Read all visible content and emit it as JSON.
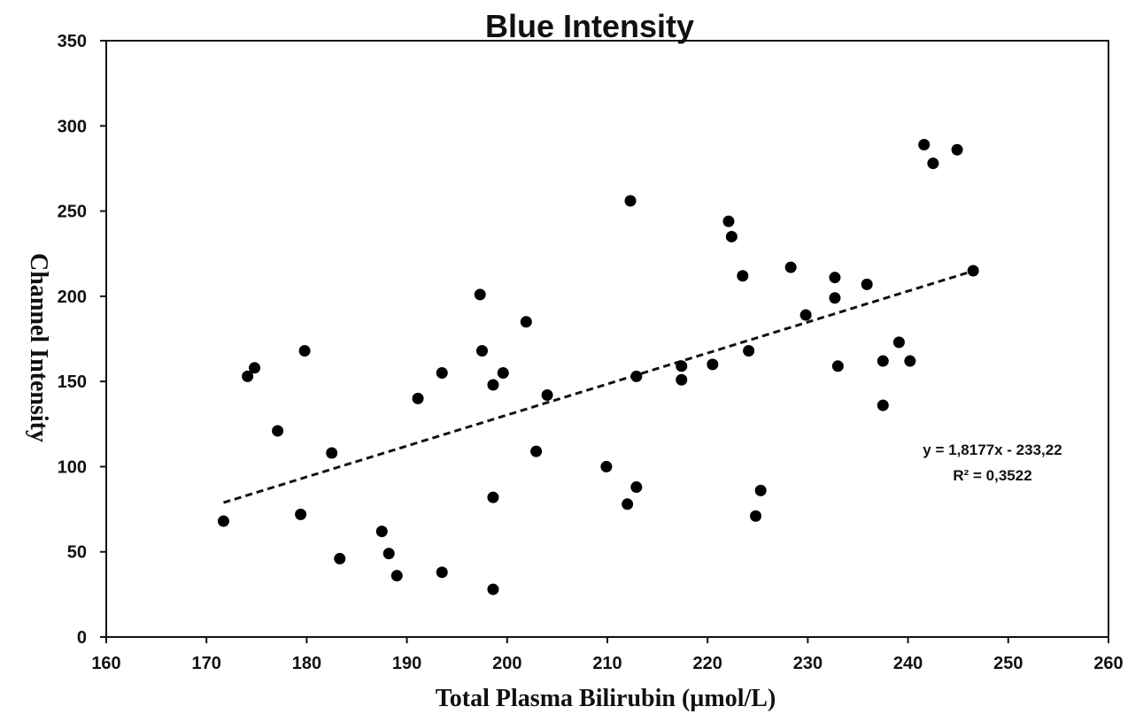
{
  "chart_data": {
    "type": "scatter",
    "title": "Blue Intensity",
    "xlabel": "Total Plasma Bilirubin (µmol/L)",
    "ylabel": "Channel Intensity",
    "xlim": [
      160,
      260
    ],
    "ylim": [
      0,
      350
    ],
    "xticks": [
      160,
      170,
      180,
      190,
      200,
      210,
      220,
      230,
      240,
      250,
      260
    ],
    "yticks": [
      0,
      50,
      100,
      150,
      200,
      250,
      300,
      350
    ],
    "grid": false,
    "legend": "none",
    "marker_color": "#000000",
    "points": [
      {
        "x": 171.7,
        "y": 68
      },
      {
        "x": 174.1,
        "y": 153
      },
      {
        "x": 174.8,
        "y": 158
      },
      {
        "x": 177.1,
        "y": 121
      },
      {
        "x": 179.4,
        "y": 72
      },
      {
        "x": 179.8,
        "y": 168
      },
      {
        "x": 182.5,
        "y": 108
      },
      {
        "x": 183.3,
        "y": 46
      },
      {
        "x": 187.5,
        "y": 62
      },
      {
        "x": 188.2,
        "y": 49
      },
      {
        "x": 189.0,
        "y": 36
      },
      {
        "x": 191.1,
        "y": 140
      },
      {
        "x": 193.5,
        "y": 38
      },
      {
        "x": 193.5,
        "y": 155
      },
      {
        "x": 197.3,
        "y": 201
      },
      {
        "x": 197.5,
        "y": 168
      },
      {
        "x": 198.6,
        "y": 148
      },
      {
        "x": 198.6,
        "y": 82
      },
      {
        "x": 198.6,
        "y": 28
      },
      {
        "x": 199.6,
        "y": 155
      },
      {
        "x": 201.9,
        "y": 185
      },
      {
        "x": 202.9,
        "y": 109
      },
      {
        "x": 204.0,
        "y": 142
      },
      {
        "x": 209.9,
        "y": 100
      },
      {
        "x": 212.0,
        "y": 78
      },
      {
        "x": 212.3,
        "y": 256
      },
      {
        "x": 212.9,
        "y": 153
      },
      {
        "x": 212.9,
        "y": 88
      },
      {
        "x": 217.4,
        "y": 159
      },
      {
        "x": 217.4,
        "y": 151
      },
      {
        "x": 220.5,
        "y": 160
      },
      {
        "x": 222.1,
        "y": 244
      },
      {
        "x": 222.4,
        "y": 235
      },
      {
        "x": 223.5,
        "y": 212
      },
      {
        "x": 224.1,
        "y": 168
      },
      {
        "x": 224.8,
        "y": 71
      },
      {
        "x": 225.3,
        "y": 86
      },
      {
        "x": 228.3,
        "y": 217
      },
      {
        "x": 229.8,
        "y": 189
      },
      {
        "x": 232.7,
        "y": 211
      },
      {
        "x": 232.7,
        "y": 199
      },
      {
        "x": 233.0,
        "y": 159
      },
      {
        "x": 235.9,
        "y": 207
      },
      {
        "x": 237.5,
        "y": 162
      },
      {
        "x": 237.5,
        "y": 136
      },
      {
        "x": 239.1,
        "y": 173
      },
      {
        "x": 240.2,
        "y": 162
      },
      {
        "x": 241.6,
        "y": 289
      },
      {
        "x": 242.5,
        "y": 278
      },
      {
        "x": 244.9,
        "y": 286
      },
      {
        "x": 246.5,
        "y": 215
      }
    ],
    "trendline": {
      "type": "linear",
      "slope": 1.8177,
      "intercept": -233.22,
      "x_range": [
        171.7,
        246.5
      ],
      "style": "dashed"
    },
    "annotations": {
      "equation": "y = 1,8177x - 233,22",
      "r_squared": "R² = 0,3522"
    }
  }
}
